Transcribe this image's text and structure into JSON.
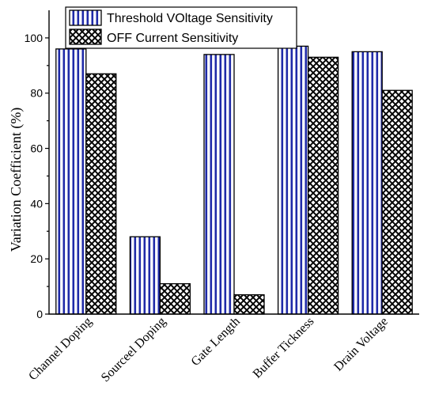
{
  "chart_data": {
    "type": "bar",
    "categories": [
      "Channel Doping",
      "Sourceel Doping",
      "Gate Length",
      "Buffer Tickness",
      "Drain Voltage"
    ],
    "series": [
      {
        "name": "Threshold VOltage Sensitivity",
        "values": [
          96,
          28,
          94,
          97,
          95
        ],
        "pattern": "vertical-stripes",
        "color": "#1f2aa8"
      },
      {
        "name": "OFF Current Sensitivity",
        "values": [
          87,
          11,
          7,
          93,
          81
        ],
        "pattern": "crosshatch",
        "color": "#000000"
      }
    ],
    "ylabel": "Variation Coefficient (%)",
    "xlabel": "",
    "ylim": [
      0,
      110
    ],
    "yticks": [
      0,
      20,
      40,
      60,
      80,
      100
    ],
    "legend": "top-center",
    "grid": false
  }
}
